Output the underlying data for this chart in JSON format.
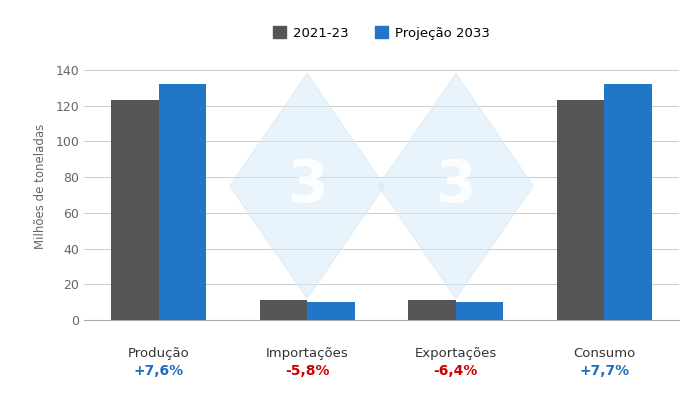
{
  "categories": [
    "Produção",
    "Importações",
    "Exportações",
    "Consumo"
  ],
  "values_2021": [
    123,
    11,
    11,
    123
  ],
  "values_2033": [
    132,
    10,
    10,
    132
  ],
  "pct_labels": [
    "+7,6%",
    "-5,8%",
    "-6,4%",
    "+7,7%"
  ],
  "pct_colors": [
    "#1f6dbf",
    "#cc0000",
    "#cc0000",
    "#1f6dbf"
  ],
  "color_2021": "#555557",
  "color_2033": "#2176c7",
  "ylabel": "Milhões de toneladas",
  "ylim": [
    0,
    150
  ],
  "yticks": [
    0,
    20,
    40,
    60,
    80,
    100,
    120,
    140
  ],
  "legend_2021": "2021-23",
  "legend_2033": "Projeção 2033",
  "bar_width": 0.32,
  "background_color": "#ffffff",
  "grid_color": "#cccccc",
  "watermark_diamond_color": "#d6eaf8",
  "watermark_text_color": "#ffffff",
  "watermark_alpha": 0.55
}
